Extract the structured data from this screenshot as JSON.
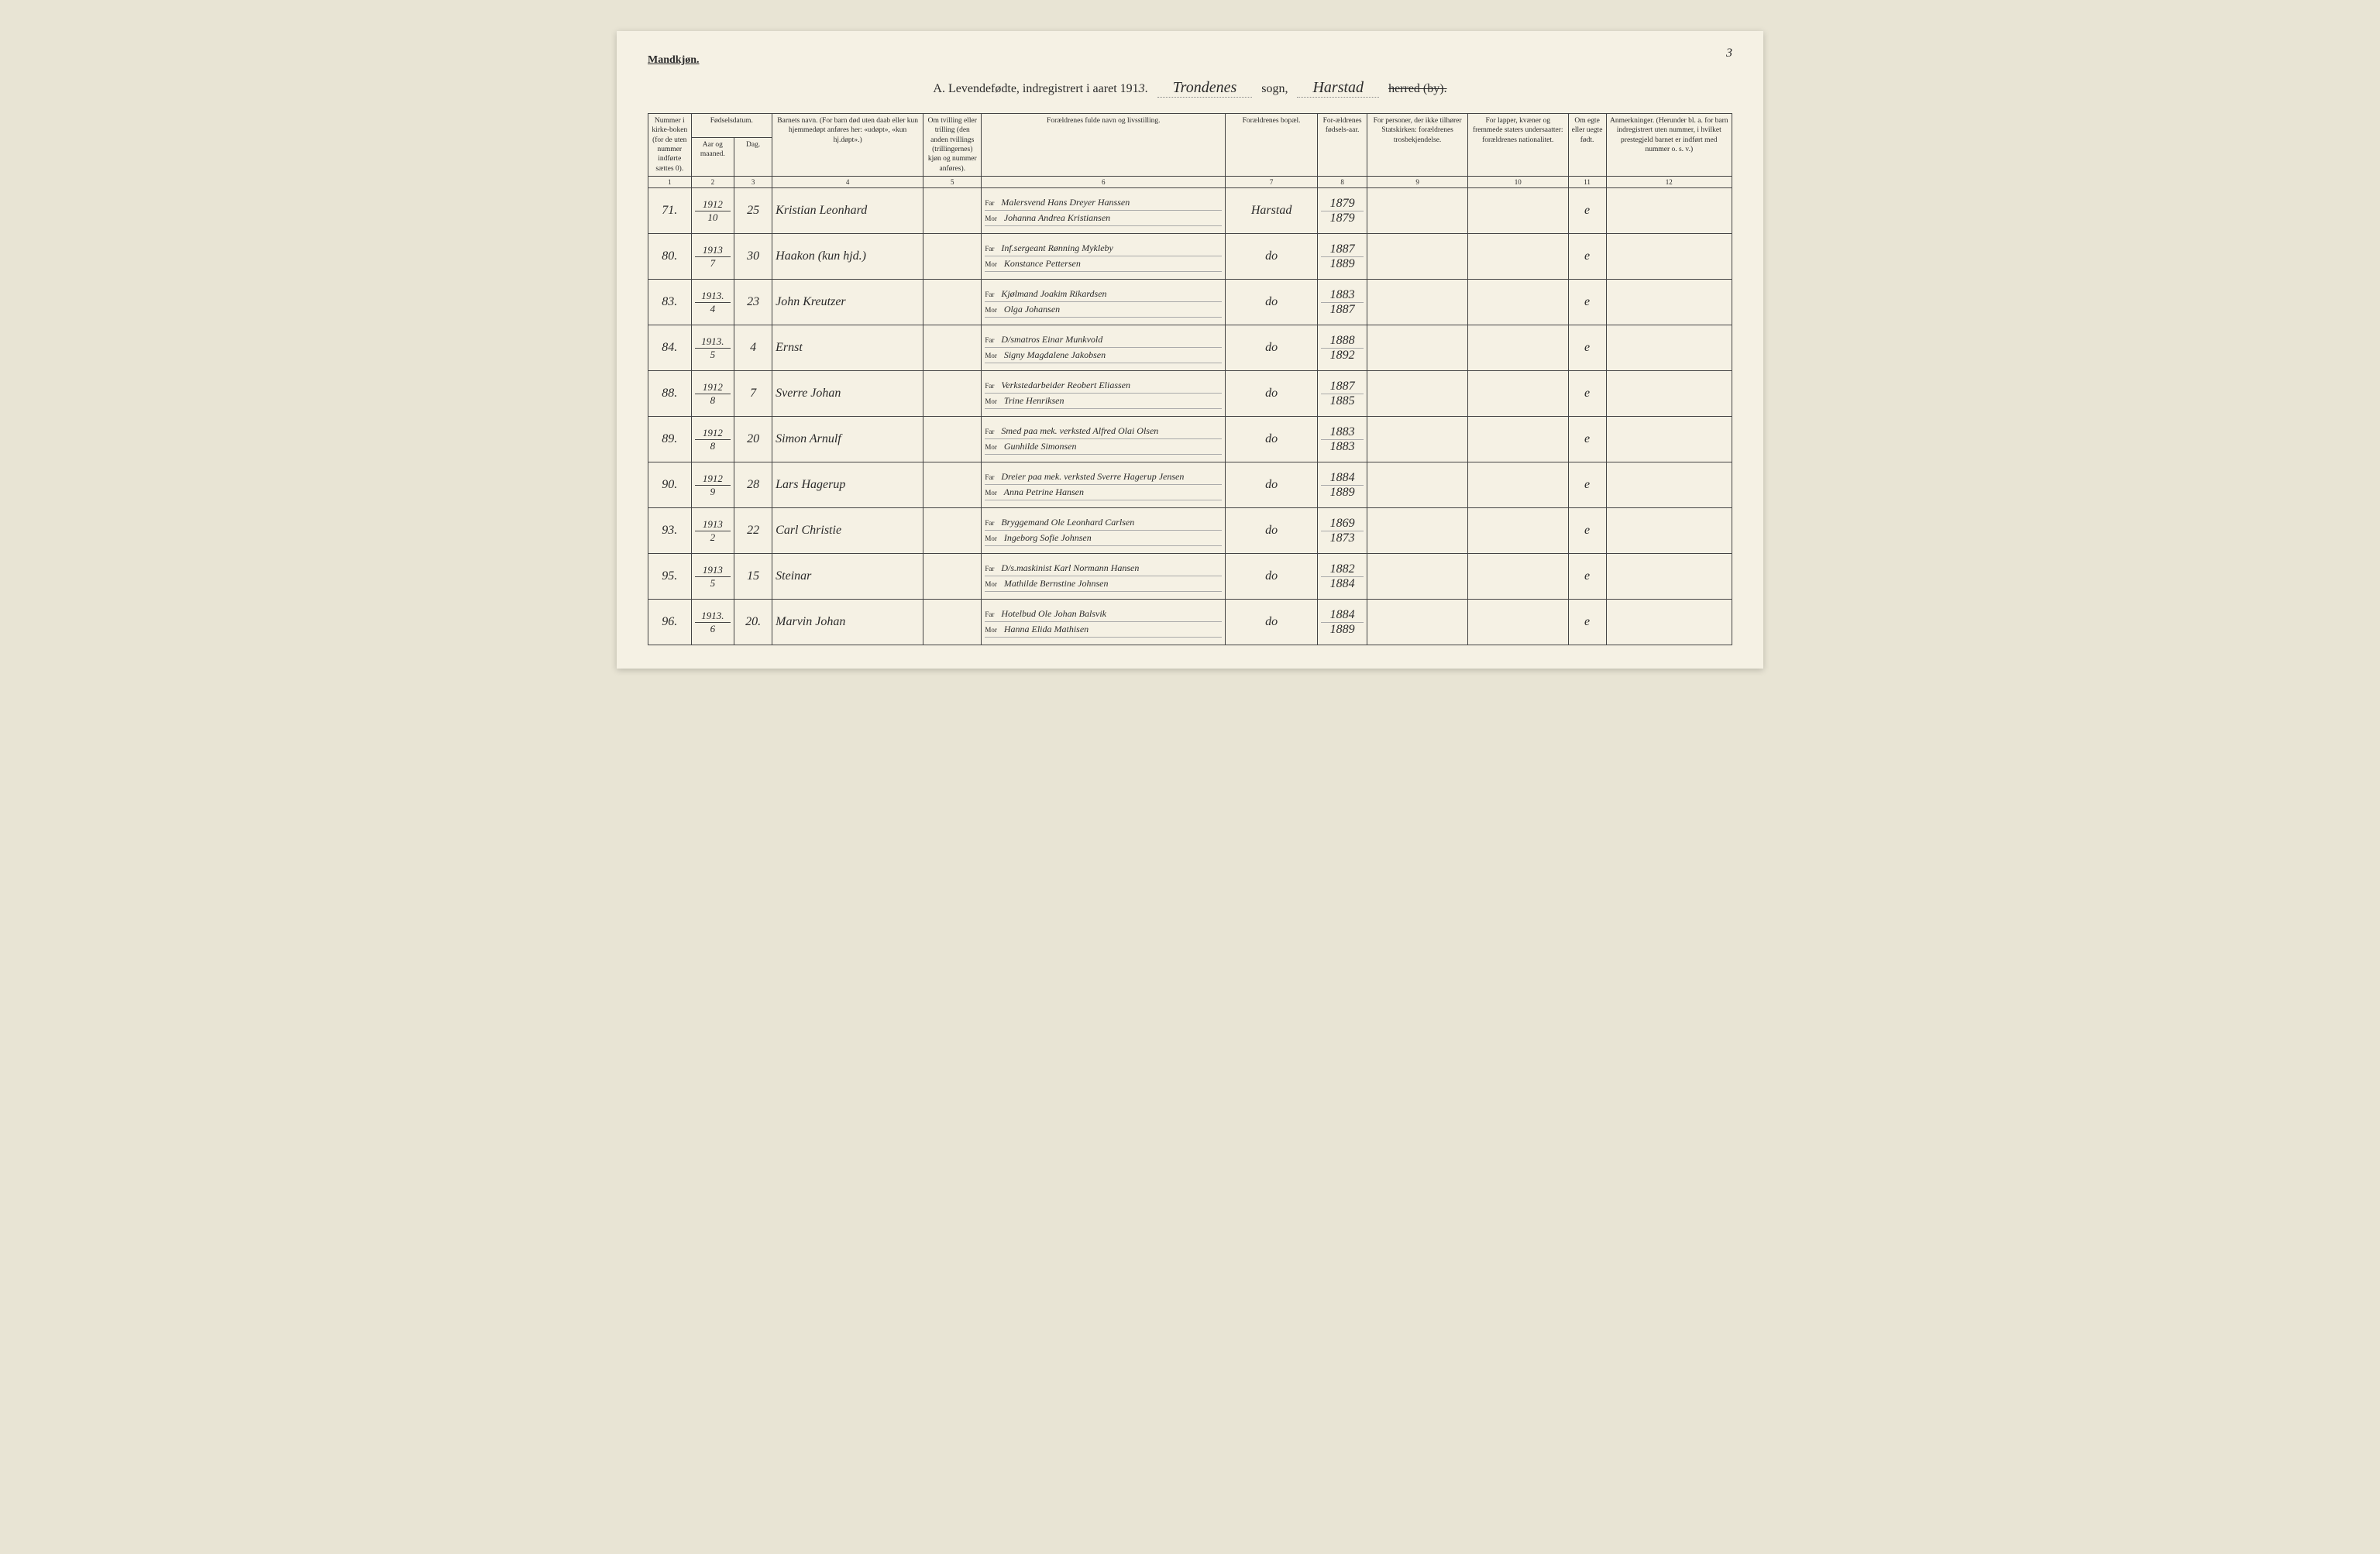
{
  "page_number": "3",
  "mandkjon": "Mandkjøn.",
  "title": {
    "prefix": "A.  Levendefødte, indregistrert i aaret 191",
    "year_suffix": "3",
    "sogn_value": "Trondenes",
    "sogn_label": "sogn,",
    "herred_value": "Harstad",
    "herred_strike": "herred (by)."
  },
  "headers": {
    "c1": "Nummer i kirke-boken (for de uten nummer indførte sættes 0).",
    "c2_group": "Fødselsdatum.",
    "c2": "Aar og maaned.",
    "c3": "Dag.",
    "c4": "Barnets navn.\n(For barn død uten daab eller kun hjemmedøpt anføres her: «udøpt», «kun hj.døpt».)",
    "c5": "Om tvilling eller trilling (den anden tvillings (trillingernes) kjøn og nummer anføres).",
    "c6": "Forældrenes fulde navn og livsstilling.",
    "c7": "Forældrenes bopæl.",
    "c8": "For-ældrenes fødsels-aar.",
    "c9": "For personer, der ikke tilhører Statskirken: forældrenes trosbekjendelse.",
    "c10": "For lapper, kvæner og fremmede staters undersaatter: forældrenes nationalitet.",
    "c11": "Om egte eller uegte født.",
    "c12": "Anmerkninger.\n(Herunder bl. a. for barn indregistrert uten nummer, i hvilket prestegjeld barnet er indført med nummer o. s. v.)"
  },
  "col_nums": [
    "1",
    "2",
    "3",
    "4",
    "5",
    "6",
    "7",
    "8",
    "9",
    "10",
    "11",
    "12"
  ],
  "far_label": "Far",
  "mor_label": "Mor",
  "rows": [
    {
      "num": "71.",
      "year": "1912",
      "month": "10",
      "day": "25",
      "name": "Kristian Leonhard",
      "far_occ": "Malersvend",
      "far": "Hans Dreyer Hanssen",
      "mor": "Johanna Andrea Kristiansen",
      "bopael": "Harstad",
      "far_year": "1879",
      "mor_year": "1879",
      "egte": "e"
    },
    {
      "num": "80.",
      "year": "1913",
      "month": "7",
      "day": "30",
      "name": "Haakon (kun hjd.)",
      "far_occ": "Inf.sergeant",
      "far": "Rønning Mykleby",
      "mor": "Konstance Pettersen",
      "bopael": "do",
      "far_year": "1887",
      "mor_year": "1889",
      "egte": "e"
    },
    {
      "num": "83.",
      "year": "1913.",
      "month": "4",
      "day": "23",
      "name": "John Kreutzer",
      "far_occ": "Kjølmand",
      "far": "Joakim Rikardsen",
      "mor": "Olga Johansen",
      "bopael": "do",
      "far_year": "1883",
      "mor_year": "1887",
      "egte": "e"
    },
    {
      "num": "84.",
      "year": "1913.",
      "month": "5",
      "day": "4",
      "name": "Ernst",
      "far_occ": "D/smatros",
      "far": "Einar Munkvold",
      "mor": "Signy Magdalene Jakobsen",
      "bopael": "do",
      "far_year": "1888",
      "mor_year": "1892",
      "egte": "e"
    },
    {
      "num": "88.",
      "year": "1912",
      "month": "8",
      "day": "7",
      "name": "Sverre Johan",
      "far_occ": "Verkstedarbeider",
      "far": "Reobert Eliassen",
      "mor": "Trine Henriksen",
      "bopael": "do",
      "far_year": "1887",
      "mor_year": "1885",
      "egte": "e"
    },
    {
      "num": "89.",
      "year": "1912",
      "month": "8",
      "day": "20",
      "name": "Simon Arnulf",
      "far_occ": "Smed paa mek. verksted",
      "far": "Alfred Olai Olsen",
      "mor": "Gunhilde Simonsen",
      "bopael": "do",
      "far_year": "1883",
      "mor_year": "1883",
      "egte": "e"
    },
    {
      "num": "90.",
      "year": "1912",
      "month": "9",
      "day": "28",
      "name": "Lars Hagerup",
      "far_occ": "Dreier paa mek. verksted",
      "far": "Sverre Hagerup Jensen",
      "mor": "Anna Petrine Hansen",
      "bopael": "do",
      "far_year": "1884",
      "mor_year": "1889",
      "egte": "e"
    },
    {
      "num": "93.",
      "year": "1913",
      "month": "2",
      "day": "22",
      "name": "Carl Christie",
      "far_occ": "Bryggemand",
      "far": "Ole Leonhard Carlsen",
      "mor": "Ingeborg Sofie Johnsen",
      "bopael": "do",
      "far_year": "1869",
      "mor_year": "1873",
      "egte": "e"
    },
    {
      "num": "95.",
      "year": "1913",
      "month": "5",
      "day": "15",
      "name": "Steinar",
      "far_occ": "D/s.maskinist",
      "far": "Karl Normann Hansen",
      "mor": "Mathilde Bernstine Johnsen",
      "bopael": "do",
      "far_year": "1882",
      "mor_year": "1884",
      "egte": "e"
    },
    {
      "num": "96.",
      "year": "1913.",
      "month": "6",
      "day": "20.",
      "name": "Marvin Johan",
      "far_occ": "Hotelbud",
      "far": "Ole Johan Balsvik",
      "mor": "Hanna Elida Mathisen",
      "bopael": "do",
      "far_year": "1884",
      "mor_year": "1889",
      "egte": "e"
    }
  ]
}
